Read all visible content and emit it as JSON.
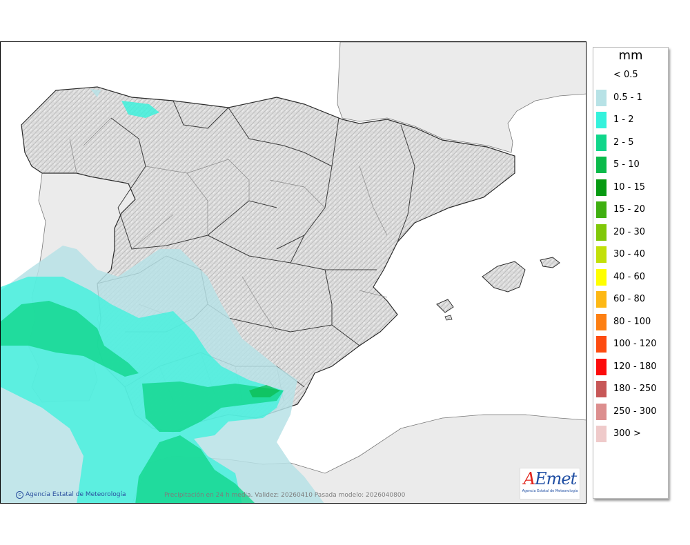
{
  "map": {
    "credit": "Agencia Estatal de Meteorología",
    "subtitle": "Precipitación en 24 h media. Validez: 20260410 Pasada modelo: 2026040800",
    "logo": {
      "mark_first": "A",
      "mark_rest": "Emet",
      "org": "Agencia Estatal de Meteorología"
    }
  },
  "legend": {
    "unit": "mm",
    "items": [
      {
        "label": "< 0.5",
        "color": "#ffffff"
      },
      {
        "label": "0.5 - 1",
        "color": "#b7e2e6"
      },
      {
        "label": "1 - 2",
        "color": "#34f2dc"
      },
      {
        "label": "2 - 5",
        "color": "#10d68a"
      },
      {
        "label": "5 - 10",
        "color": "#0aba4a"
      },
      {
        "label": "10 - 15",
        "color": "#079a12"
      },
      {
        "label": "15 - 20",
        "color": "#3faf10"
      },
      {
        "label": "20 - 30",
        "color": "#80c808"
      },
      {
        "label": "30 - 40",
        "color": "#c2e008"
      },
      {
        "label": "40 - 60",
        "color": "#ffff00"
      },
      {
        "label": "60 - 80",
        "color": "#fdb814"
      },
      {
        "label": "80 - 100",
        "color": "#fd7f12"
      },
      {
        "label": "100 - 120",
        "color": "#fd4b10"
      },
      {
        "label": "120 - 180",
        "color": "#fc0b0b"
      },
      {
        "label": "180 - 250",
        "color": "#c75757"
      },
      {
        "label": "250 - 300",
        "color": "#dc8e8e"
      },
      {
        "label": "300 >",
        "color": "#efcaca"
      }
    ]
  }
}
